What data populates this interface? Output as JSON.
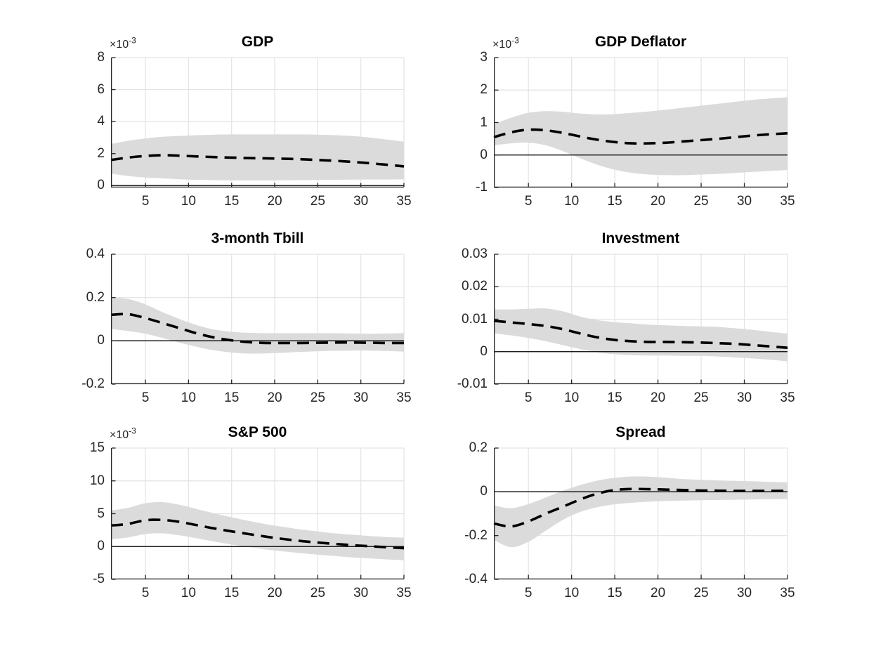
{
  "figure": {
    "background": "#ffffff",
    "grid_color": "#e3e3e3",
    "axis_color": "#262626",
    "band_color": "#dbdbdb",
    "line_color": "#000000",
    "zero_line_color": "#000000"
  },
  "chart_data": [
    {
      "type": "line",
      "title": "GDP",
      "y_scale_base": "×10",
      "y_scale_exp": "-3",
      "xlim": [
        1,
        35
      ],
      "xticks": [
        5,
        10,
        15,
        20,
        25,
        30,
        35
      ],
      "ylim": [
        -0.00012,
        0.008
      ],
      "ytick_values": [
        0,
        0.002,
        0.004,
        0.006,
        0.008
      ],
      "ytick_labels": [
        "0",
        "2",
        "4",
        "6",
        "8"
      ],
      "grid": true,
      "zero_line": true,
      "legend": "none",
      "x": [
        1,
        3,
        5,
        7,
        9,
        11,
        13,
        15,
        17,
        19,
        21,
        23,
        25,
        27,
        29,
        31,
        33,
        35
      ],
      "series": [
        {
          "name": "median impulse response",
          "style": "dashed",
          "y": [
            0.0016,
            0.00175,
            0.00185,
            0.0019,
            0.00187,
            0.00182,
            0.00178,
            0.00175,
            0.00172,
            0.0017,
            0.00168,
            0.00165,
            0.0016,
            0.00155,
            0.00148,
            0.0014,
            0.0013,
            0.0012
          ]
        }
      ],
      "band": {
        "name": "confidence band",
        "upper": [
          0.0026,
          0.0028,
          0.00295,
          0.00305,
          0.0031,
          0.00315,
          0.00318,
          0.0032,
          0.0032,
          0.0032,
          0.0032,
          0.0032,
          0.00318,
          0.00315,
          0.0031,
          0.003,
          0.00288,
          0.00275
        ],
        "lower": [
          0.00075,
          0.0006,
          0.0005,
          0.00045,
          0.0004,
          0.00036,
          0.00034,
          0.00032,
          0.00032,
          0.00032,
          0.00033,
          0.00034,
          0.00035,
          0.00036,
          0.00037,
          0.00038,
          0.00038,
          0.00039
        ]
      }
    },
    {
      "type": "line",
      "title": "GDP Deflator",
      "y_scale_base": "×10",
      "y_scale_exp": "-3",
      "xlim": [
        1,
        35
      ],
      "xticks": [
        5,
        10,
        15,
        20,
        25,
        30,
        35
      ],
      "ylim": [
        -0.001,
        0.003
      ],
      "ytick_values": [
        -0.001,
        0,
        0.001,
        0.002,
        0.003
      ],
      "ytick_labels": [
        "-1",
        "0",
        "1",
        "2",
        "3"
      ],
      "grid": true,
      "zero_line": true,
      "legend": "none",
      "x": [
        1,
        3,
        5,
        7,
        9,
        11,
        13,
        15,
        17,
        19,
        21,
        23,
        25,
        27,
        29,
        31,
        33,
        35
      ],
      "series": [
        {
          "name": "median impulse response",
          "style": "dashed",
          "y": [
            0.00055,
            0.0007,
            0.00078,
            0.00076,
            0.00068,
            0.00057,
            0.00047,
            0.0004,
            0.00036,
            0.00036,
            0.00038,
            0.00042,
            0.00046,
            0.0005,
            0.00055,
            0.0006,
            0.00064,
            0.00067
          ]
        }
      ],
      "band": {
        "name": "confidence band",
        "upper": [
          0.00095,
          0.00115,
          0.0013,
          0.00135,
          0.00133,
          0.00128,
          0.00125,
          0.00126,
          0.0013,
          0.00134,
          0.0014,
          0.00146,
          0.00152,
          0.00158,
          0.00164,
          0.0017,
          0.00174,
          0.00178
        ],
        "lower": [
          0.0003,
          0.00036,
          0.00038,
          0.0003,
          0.00012,
          -0.0001,
          -0.0003,
          -0.00045,
          -0.00055,
          -0.0006,
          -0.00062,
          -0.00062,
          -0.0006,
          -0.00058,
          -0.00055,
          -0.00052,
          -0.00049,
          -0.00046
        ]
      }
    },
    {
      "type": "line",
      "title": "3-month Tbill",
      "y_scale_base": "",
      "y_scale_exp": "",
      "xlim": [
        1,
        35
      ],
      "xticks": [
        5,
        10,
        15,
        20,
        25,
        30,
        35
      ],
      "ylim": [
        -0.2,
        0.4
      ],
      "ytick_values": [
        -0.2,
        0,
        0.2,
        0.4
      ],
      "ytick_labels": [
        "-0.2",
        "0",
        "0.2",
        "0.4"
      ],
      "grid": true,
      "zero_line": true,
      "legend": "none",
      "x": [
        1,
        3,
        5,
        7,
        9,
        11,
        13,
        15,
        17,
        19,
        21,
        23,
        25,
        27,
        29,
        31,
        33,
        35
      ],
      "series": [
        {
          "name": "median impulse response",
          "style": "dashed",
          "y": [
            0.12,
            0.123,
            0.105,
            0.082,
            0.058,
            0.034,
            0.015,
            0.002,
            -0.006,
            -0.01,
            -0.01,
            -0.01,
            -0.009,
            -0.008,
            -0.008,
            -0.009,
            -0.01,
            -0.01
          ]
        }
      ],
      "band": {
        "name": "confidence band",
        "upper": [
          0.2,
          0.193,
          0.168,
          0.132,
          0.1,
          0.072,
          0.052,
          0.042,
          0.037,
          0.035,
          0.035,
          0.035,
          0.035,
          0.035,
          0.034,
          0.033,
          0.034,
          0.036
        ],
        "lower": [
          0.055,
          0.045,
          0.033,
          0.013,
          -0.009,
          -0.028,
          -0.044,
          -0.054,
          -0.059,
          -0.058,
          -0.055,
          -0.051,
          -0.048,
          -0.046,
          -0.045,
          -0.045,
          -0.047,
          -0.05
        ]
      }
    },
    {
      "type": "line",
      "title": "Investment",
      "y_scale_base": "",
      "y_scale_exp": "",
      "xlim": [
        1,
        35
      ],
      "xticks": [
        5,
        10,
        15,
        20,
        25,
        30,
        35
      ],
      "ylim": [
        -0.01,
        0.03
      ],
      "ytick_values": [
        -0.01,
        0,
        0.01,
        0.02,
        0.03
      ],
      "ytick_labels": [
        "-0.01",
        "0",
        "0.01",
        "0.02",
        "0.03"
      ],
      "grid": true,
      "zero_line": true,
      "legend": "none",
      "x": [
        1,
        3,
        5,
        7,
        9,
        11,
        13,
        15,
        17,
        19,
        21,
        23,
        25,
        27,
        29,
        31,
        33,
        35
      ],
      "series": [
        {
          "name": "median impulse response",
          "style": "dashed",
          "y": [
            0.0095,
            0.009,
            0.0085,
            0.0079,
            0.0069,
            0.0056,
            0.0044,
            0.0036,
            0.0032,
            0.003,
            0.003,
            0.0029,
            0.0028,
            0.0026,
            0.0024,
            0.002,
            0.0016,
            0.0012
          ]
        }
      ],
      "band": {
        "name": "confidence band",
        "upper": [
          0.013,
          0.013,
          0.0132,
          0.0133,
          0.0124,
          0.0108,
          0.0097,
          0.0091,
          0.0087,
          0.0083,
          0.0081,
          0.0079,
          0.0078,
          0.0076,
          0.0072,
          0.0067,
          0.0061,
          0.0056
        ],
        "lower": [
          0.0056,
          0.005,
          0.0042,
          0.0032,
          0.002,
          0.0008,
          -0.0002,
          -0.0008,
          -0.0011,
          -0.0012,
          -0.0012,
          -0.0013,
          -0.0013,
          -0.0015,
          -0.0018,
          -0.0021,
          -0.0025,
          -0.003
        ]
      }
    },
    {
      "type": "line",
      "title": "S&P 500",
      "y_scale_base": "×10",
      "y_scale_exp": "-3",
      "xlim": [
        1,
        35
      ],
      "xticks": [
        5,
        10,
        15,
        20,
        25,
        30,
        35
      ],
      "ylim": [
        -0.005,
        0.015
      ],
      "ytick_values": [
        -0.005,
        0,
        0.005,
        0.01,
        0.015
      ],
      "ytick_labels": [
        "-5",
        "0",
        "5",
        "10",
        "15"
      ],
      "grid": true,
      "zero_line": true,
      "legend": "none",
      "x": [
        1,
        3,
        5,
        7,
        9,
        11,
        13,
        15,
        17,
        19,
        21,
        23,
        25,
        27,
        29,
        31,
        33,
        35
      ],
      "series": [
        {
          "name": "median impulse response",
          "style": "dashed",
          "y": [
            0.0032,
            0.00345,
            0.004,
            0.00405,
            0.00375,
            0.00325,
            0.00275,
            0.0023,
            0.0019,
            0.0015,
            0.00115,
            0.00085,
            0.0006,
            0.0004,
            0.0002,
            5e-05,
            -0.0001,
            -0.00025
          ]
        }
      ],
      "band": {
        "name": "confidence band",
        "upper": [
          0.0055,
          0.0059,
          0.0066,
          0.00675,
          0.00635,
          0.0057,
          0.00505,
          0.00445,
          0.0039,
          0.0034,
          0.003,
          0.0026,
          0.0023,
          0.002,
          0.0018,
          0.0016,
          0.00145,
          0.00135
        ],
        "lower": [
          0.0011,
          0.0014,
          0.0019,
          0.002,
          0.0017,
          0.00125,
          0.00075,
          0.0003,
          -0.0001,
          -0.00045,
          -0.00075,
          -0.001,
          -0.00125,
          -0.00145,
          -0.00165,
          -0.0018,
          -0.00195,
          -0.0021
        ]
      }
    },
    {
      "type": "line",
      "title": "Spread",
      "y_scale_base": "",
      "y_scale_exp": "",
      "xlim": [
        1,
        35
      ],
      "xticks": [
        5,
        10,
        15,
        20,
        25,
        30,
        35
      ],
      "ylim": [
        -0.4,
        0.2
      ],
      "ytick_values": [
        -0.4,
        -0.2,
        0,
        0.2
      ],
      "ytick_labels": [
        "-0.4",
        "-0.2",
        "0",
        "0.2"
      ],
      "grid": true,
      "zero_line": true,
      "legend": "none",
      "x": [
        1,
        3,
        5,
        7,
        9,
        11,
        13,
        15,
        17,
        19,
        21,
        23,
        25,
        27,
        29,
        31,
        33,
        35
      ],
      "series": [
        {
          "name": "median impulse response",
          "style": "dashed",
          "y": [
            -0.145,
            -0.158,
            -0.135,
            -0.1,
            -0.068,
            -0.035,
            -0.008,
            0.008,
            0.013,
            0.012,
            0.01,
            0.008,
            0.006,
            0.005,
            0.004,
            0.004,
            0.004,
            0.004
          ]
        }
      ],
      "band": {
        "name": "confidence band",
        "upper": [
          -0.062,
          -0.075,
          -0.056,
          -0.026,
          0.005,
          0.031,
          0.051,
          0.064,
          0.07,
          0.069,
          0.064,
          0.058,
          0.055,
          0.052,
          0.05,
          0.048,
          0.045,
          0.043
        ],
        "lower": [
          -0.22,
          -0.253,
          -0.228,
          -0.178,
          -0.128,
          -0.092,
          -0.07,
          -0.057,
          -0.05,
          -0.045,
          -0.042,
          -0.04,
          -0.038,
          -0.037,
          -0.036,
          -0.035,
          -0.034,
          -0.033
        ]
      }
    }
  ]
}
